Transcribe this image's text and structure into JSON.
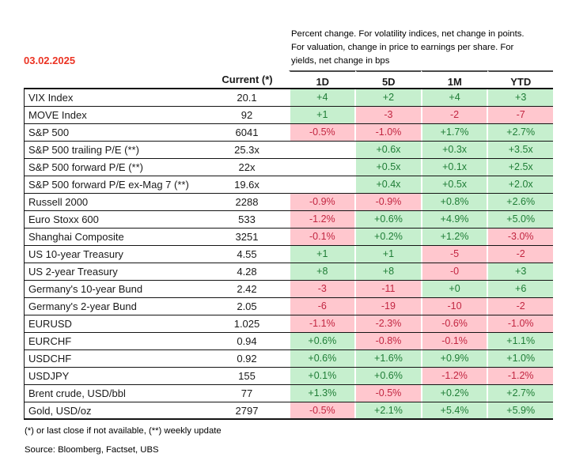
{
  "date": "03.02.2025",
  "note_lines": [
    "Percent change. For volatility indices, net change in points.",
    "For valuation, change in price to earnings per share. For",
    "yields,  net change in bps"
  ],
  "table": {
    "current_header": "Current (*)",
    "change_headers": [
      "1D",
      "5D",
      "1M",
      "YTD"
    ],
    "rows": [
      {
        "label": "VIX Index",
        "current": "20.1",
        "changes": [
          {
            "v": "+4",
            "s": "up"
          },
          {
            "v": "+2",
            "s": "up"
          },
          {
            "v": "+4",
            "s": "up"
          },
          {
            "v": "+3",
            "s": "up"
          }
        ]
      },
      {
        "label": "MOVE Index",
        "current": "92",
        "changes": [
          {
            "v": "+1",
            "s": "up"
          },
          {
            "v": "-3",
            "s": "down"
          },
          {
            "v": "-2",
            "s": "down"
          },
          {
            "v": "-7",
            "s": "down"
          }
        ]
      },
      {
        "label": "S&P 500",
        "current": "6041",
        "changes": [
          {
            "v": "-0.5%",
            "s": "down"
          },
          {
            "v": "-1.0%",
            "s": "down"
          },
          {
            "v": "+1.7%",
            "s": "up"
          },
          {
            "v": "+2.7%",
            "s": "up"
          }
        ]
      },
      {
        "label": "S&P 500 trailing P/E (**)",
        "current": "25.3x",
        "changes": [
          {
            "v": "",
            "s": "blank"
          },
          {
            "v": "+0.6x",
            "s": "up"
          },
          {
            "v": "+0.3x",
            "s": "up"
          },
          {
            "v": "+3.5x",
            "s": "up"
          }
        ]
      },
      {
        "label": "S&P 500 forward P/E (**)",
        "current": "22x",
        "changes": [
          {
            "v": "",
            "s": "blank"
          },
          {
            "v": "+0.5x",
            "s": "up"
          },
          {
            "v": "+0.1x",
            "s": "up"
          },
          {
            "v": "+2.5x",
            "s": "up"
          }
        ]
      },
      {
        "label": "S&P 500 forward P/E ex-Mag 7 (**)",
        "current": "19.6x",
        "changes": [
          {
            "v": "",
            "s": "blank"
          },
          {
            "v": "+0.4x",
            "s": "up"
          },
          {
            "v": "+0.5x",
            "s": "up"
          },
          {
            "v": "+2.0x",
            "s": "up"
          }
        ]
      },
      {
        "label": "Russell 2000",
        "current": "2288",
        "changes": [
          {
            "v": "-0.9%",
            "s": "down"
          },
          {
            "v": "-0.9%",
            "s": "down"
          },
          {
            "v": "+0.8%",
            "s": "up"
          },
          {
            "v": "+2.6%",
            "s": "up"
          }
        ]
      },
      {
        "label": "Euro Stoxx 600",
        "current": "533",
        "changes": [
          {
            "v": "-1.2%",
            "s": "down"
          },
          {
            "v": "+0.6%",
            "s": "up"
          },
          {
            "v": "+4.9%",
            "s": "up"
          },
          {
            "v": "+5.0%",
            "s": "up"
          }
        ]
      },
      {
        "label": "Shanghai Composite",
        "current": "3251",
        "changes": [
          {
            "v": "-0.1%",
            "s": "down"
          },
          {
            "v": "+0.2%",
            "s": "up"
          },
          {
            "v": "+1.2%",
            "s": "up"
          },
          {
            "v": "-3.0%",
            "s": "down"
          }
        ]
      },
      {
        "label": "US 10-year Treasury",
        "current": "4.55",
        "changes": [
          {
            "v": "+1",
            "s": "up"
          },
          {
            "v": "+1",
            "s": "up"
          },
          {
            "v": "-5",
            "s": "down"
          },
          {
            "v": "-2",
            "s": "down"
          }
        ]
      },
      {
        "label": "US 2-year Treasury",
        "current": "4.28",
        "changes": [
          {
            "v": "+8",
            "s": "up"
          },
          {
            "v": "+8",
            "s": "up"
          },
          {
            "v": "-0",
            "s": "down"
          },
          {
            "v": "+3",
            "s": "up"
          }
        ]
      },
      {
        "label": "Germany's 10-year Bund",
        "current": "2.42",
        "changes": [
          {
            "v": "-3",
            "s": "down"
          },
          {
            "v": "-11",
            "s": "down"
          },
          {
            "v": "+0",
            "s": "up"
          },
          {
            "v": "+6",
            "s": "up"
          }
        ]
      },
      {
        "label": "Germany's 2-year Bund",
        "current": "2.05",
        "changes": [
          {
            "v": "-6",
            "s": "down"
          },
          {
            "v": "-19",
            "s": "down"
          },
          {
            "v": "-10",
            "s": "down"
          },
          {
            "v": "-2",
            "s": "down"
          }
        ]
      },
      {
        "label": "EURUSD",
        "current": "1.025",
        "changes": [
          {
            "v": "-1.1%",
            "s": "down"
          },
          {
            "v": "-2.3%",
            "s": "down"
          },
          {
            "v": "-0.6%",
            "s": "down"
          },
          {
            "v": "-1.0%",
            "s": "down"
          }
        ]
      },
      {
        "label": "EURCHF",
        "current": "0.94",
        "changes": [
          {
            "v": "+0.6%",
            "s": "up"
          },
          {
            "v": "-0.8%",
            "s": "down"
          },
          {
            "v": "-0.1%",
            "s": "down"
          },
          {
            "v": "+1.1%",
            "s": "up"
          }
        ]
      },
      {
        "label": "USDCHF",
        "current": "0.92",
        "changes": [
          {
            "v": "+0.6%",
            "s": "up"
          },
          {
            "v": "+1.6%",
            "s": "up"
          },
          {
            "v": "+0.9%",
            "s": "up"
          },
          {
            "v": "+1.0%",
            "s": "up"
          }
        ]
      },
      {
        "label": "USDJPY",
        "current": "155",
        "changes": [
          {
            "v": "+0.1%",
            "s": "up"
          },
          {
            "v": "+0.6%",
            "s": "up"
          },
          {
            "v": "-1.2%",
            "s": "down"
          },
          {
            "v": "-1.2%",
            "s": "down"
          }
        ]
      },
      {
        "label": "Brent crude, USD/bbl",
        "current": "77",
        "changes": [
          {
            "v": "+1.3%",
            "s": "up"
          },
          {
            "v": "-0.5%",
            "s": "down"
          },
          {
            "v": "+0.2%",
            "s": "up"
          },
          {
            "v": "+2.7%",
            "s": "up"
          }
        ]
      },
      {
        "label": "Gold,  USD/oz",
        "current": "2797",
        "changes": [
          {
            "v": "-0.5%",
            "s": "down"
          },
          {
            "v": "+2.1%",
            "s": "up"
          },
          {
            "v": "+5.4%",
            "s": "up"
          },
          {
            "v": "+5.9%",
            "s": "up"
          }
        ]
      }
    ]
  },
  "footnotes": {
    "asterisk": "(*) or last close if not available, (**) weekly update",
    "source": "Source: Bloomberg, Factset, UBS"
  },
  "colors": {
    "positive_bg": "#c6efce",
    "positive_text": "#1f7d36",
    "negative_bg": "#ffc7ce",
    "negative_text": "#c22641",
    "date_red": "#eb3323"
  }
}
